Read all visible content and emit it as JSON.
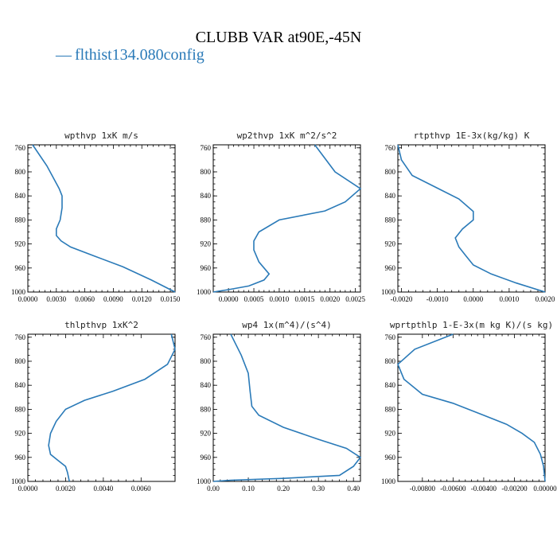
{
  "title": "CLUBB VAR at90E,-45N",
  "legend": {
    "symbol": "—",
    "label": "flthist134.080config",
    "color": "#2a7ab8"
  },
  "chart_data": [
    {
      "type": "line",
      "title": "wpthvp  1xK m/s",
      "xlim": [
        0.0,
        0.0155
      ],
      "ylim": [
        1000,
        755
      ],
      "y_reversed": true,
      "xticks": [
        0.0,
        0.003,
        0.006,
        0.009,
        0.012,
        0.015
      ],
      "xtick_labels": [
        "0.0000",
        "0.0030",
        "0.0060",
        "0.0090",
        "0.0120",
        "0.0150"
      ],
      "yticks": [
        760,
        800,
        840,
        880,
        920,
        960,
        1000
      ],
      "ytick_labels": [
        "760",
        "800",
        "840",
        "880",
        "920",
        "960",
        "1000"
      ],
      "series": [
        {
          "color": "#2a7ab8",
          "x": [
            0.0005,
            0.002,
            0.0033,
            0.0036,
            0.0036,
            0.0034,
            0.003,
            0.003,
            0.0035,
            0.0045,
            0.007,
            0.01,
            0.013,
            0.0155
          ],
          "y": [
            755,
            790,
            828,
            840,
            860,
            880,
            895,
            906,
            915,
            925,
            940,
            958,
            980,
            1000
          ]
        }
      ]
    },
    {
      "type": "line",
      "title": "wp2thvp  1xK m^2/s^2",
      "xlim": [
        -0.0003,
        0.0026
      ],
      "ylim": [
        1000,
        755
      ],
      "y_reversed": true,
      "xticks": [
        0.0,
        0.0005,
        0.001,
        0.0015,
        0.002,
        0.0025
      ],
      "xtick_labels": [
        "0.0000",
        "0.0005",
        "0.0010",
        "0.0015",
        "0.0020",
        "0.0025"
      ],
      "yticks": [
        760,
        800,
        840,
        880,
        920,
        960,
        1000
      ],
      "ytick_labels": [
        "760",
        "800",
        "840",
        "880",
        "920",
        "960",
        "1000"
      ],
      "series": [
        {
          "color": "#2a7ab8",
          "x": [
            0.0017,
            0.0021,
            0.0026,
            0.0023,
            0.0019,
            0.001,
            0.0006,
            0.0005,
            0.0005,
            0.0006,
            0.0008,
            0.0007,
            0.0004,
            0.0,
            -0.0003
          ],
          "y": [
            755,
            800,
            828,
            850,
            865,
            880,
            900,
            915,
            930,
            950,
            970,
            980,
            990,
            996,
            1000
          ]
        }
      ]
    },
    {
      "type": "line",
      "title": "rtpthvp  1E-3x(kg/kg) K",
      "xlim": [
        -0.0021,
        0.002
      ],
      "ylim": [
        1000,
        755
      ],
      "y_reversed": true,
      "xticks": [
        -0.002,
        -0.001,
        0.0,
        0.001,
        0.002
      ],
      "xtick_labels": [
        "-0.0020",
        "-0.0010",
        "0.0000",
        "0.0010",
        "0.0020"
      ],
      "yticks": [
        760,
        800,
        840,
        880,
        920,
        960,
        1000
      ],
      "ytick_labels": [
        "760",
        "800",
        "840",
        "880",
        "920",
        "960",
        "1000"
      ],
      "series": [
        {
          "color": "#2a7ab8",
          "x": [
            -0.0021,
            -0.002,
            -0.0017,
            -0.001,
            -0.0004,
            0.0,
            0.0,
            -0.0003,
            -0.0005,
            -0.0004,
            -0.0002,
            0.0,
            0.0005,
            0.0012,
            0.002
          ],
          "y": [
            755,
            780,
            806,
            827,
            845,
            866,
            880,
            895,
            910,
            925,
            940,
            955,
            970,
            985,
            1000
          ]
        }
      ]
    },
    {
      "type": "line",
      "title": "thlpthvp  1xK^2",
      "xlim": [
        0.0,
        0.0078
      ],
      "ylim": [
        1000,
        755
      ],
      "y_reversed": true,
      "xticks": [
        0.0,
        0.002,
        0.004,
        0.006
      ],
      "xtick_labels": [
        "0.0000",
        "0.0020",
        "0.0040",
        "0.0060"
      ],
      "yticks": [
        760,
        800,
        840,
        880,
        920,
        960,
        1000
      ],
      "ytick_labels": [
        "760",
        "800",
        "840",
        "880",
        "920",
        "960",
        "1000"
      ],
      "series": [
        {
          "color": "#2a7ab8",
          "x": [
            0.0076,
            0.0078,
            0.0074,
            0.0062,
            0.0045,
            0.003,
            0.002,
            0.0015,
            0.0012,
            0.0011,
            0.0012,
            0.0016,
            0.002,
            0.0021,
            0.0022
          ],
          "y": [
            755,
            780,
            805,
            830,
            850,
            865,
            880,
            900,
            920,
            940,
            955,
            965,
            975,
            985,
            1000
          ]
        }
      ]
    },
    {
      "type": "line",
      "title": "wp4  1x(m^4)/(s^4)",
      "xlim": [
        0.0,
        0.42
      ],
      "ylim": [
        1000,
        755
      ],
      "y_reversed": true,
      "xticks": [
        0.0,
        0.1,
        0.2,
        0.3,
        0.4
      ],
      "xtick_labels": [
        "0.00",
        "0.10",
        "0.20",
        "0.30",
        "0.40"
      ],
      "yticks": [
        760,
        800,
        840,
        880,
        920,
        960,
        1000
      ],
      "ytick_labels": [
        "760",
        "800",
        "840",
        "880",
        "920",
        "960",
        "1000"
      ],
      "series": [
        {
          "color": "#2a7ab8",
          "x": [
            0.05,
            0.08,
            0.1,
            0.105,
            0.11,
            0.13,
            0.2,
            0.3,
            0.38,
            0.42,
            0.4,
            0.36,
            0.2,
            0.05,
            0.0
          ],
          "y": [
            755,
            790,
            820,
            850,
            875,
            890,
            910,
            930,
            945,
            960,
            975,
            990,
            995,
            998,
            1000
          ]
        }
      ]
    },
    {
      "type": "line",
      "title": "wprtpthlp  1-E-3x(m kg K)/(s kg)",
      "xlim": [
        -0.0096,
        0.0
      ],
      "ylim": [
        1000,
        755
      ],
      "y_reversed": true,
      "xticks": [
        -0.008,
        -0.006,
        -0.004,
        -0.002,
        0.0
      ],
      "xtick_labels": [
        "-0.00800",
        "-0.00600",
        "-0.00400",
        "-0.00200",
        "0.00000"
      ],
      "yticks": [
        760,
        800,
        840,
        880,
        920,
        960,
        1000
      ],
      "ytick_labels": [
        "760",
        "800",
        "840",
        "880",
        "920",
        "960",
        "1000"
      ],
      "series": [
        {
          "color": "#2a7ab8",
          "x": [
            -0.006,
            -0.0085,
            -0.0096,
            -0.0092,
            -0.008,
            -0.006,
            -0.004,
            -0.0025,
            -0.0015,
            -0.0007,
            -0.0003,
            -0.0001,
            0.0
          ],
          "y": [
            755,
            780,
            805,
            830,
            855,
            870,
            890,
            905,
            920,
            935,
            955,
            975,
            1000
          ]
        }
      ]
    }
  ]
}
